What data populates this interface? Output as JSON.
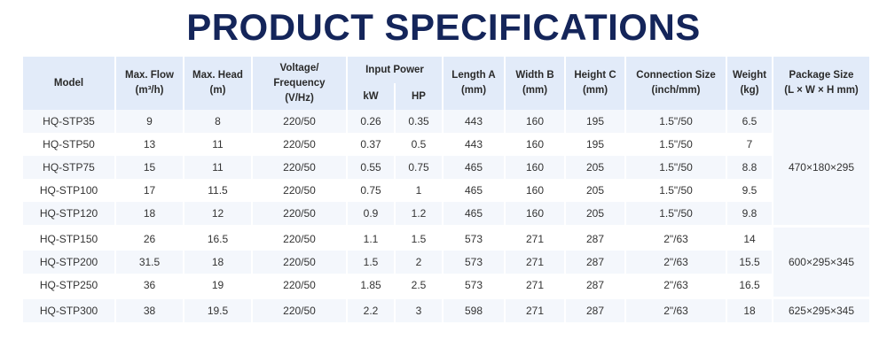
{
  "title": "PRODUCT SPECIFICATIONS",
  "headers": {
    "model": "Model",
    "max_flow": "Max. Flow",
    "max_flow_unit": "(m³/h)",
    "max_head": "Max. Head",
    "max_head_unit": "(m)",
    "voltage": "Voltage/",
    "voltage_2": "Frequency",
    "voltage_unit": "(V/Hz)",
    "input_power": "Input Power",
    "kw": "kW",
    "hp": "HP",
    "length": "Length A",
    "length_unit": "(mm)",
    "width": "Width B",
    "width_unit": "(mm)",
    "height": "Height C",
    "height_unit": "(mm)",
    "connection": "Connection Size",
    "connection_unit": "(inch/mm)",
    "weight": "Weight",
    "weight_unit": "(kg)",
    "package": "Package Size",
    "package_unit": "(L × W × H mm)"
  },
  "rows": [
    {
      "model": "HQ-STP35",
      "flow": "9",
      "head": "8",
      "voltage": "220/50",
      "kw": "0.26",
      "hp": "0.35",
      "length": "443",
      "width": "160",
      "height": "195",
      "connection": "1.5\"/50",
      "weight": "6.5"
    },
    {
      "model": "HQ-STP50",
      "flow": "13",
      "head": "11",
      "voltage": "220/50",
      "kw": "0.37",
      "hp": "0.5",
      "length": "443",
      "width": "160",
      "height": "195",
      "connection": "1.5\"/50",
      "weight": "7"
    },
    {
      "model": "HQ-STP75",
      "flow": "15",
      "head": "11",
      "voltage": "220/50",
      "kw": "0.55",
      "hp": "0.75",
      "length": "465",
      "width": "160",
      "height": "205",
      "connection": "1.5\"/50",
      "weight": "8.8"
    },
    {
      "model": "HQ-STP100",
      "flow": "17",
      "head": "11.5",
      "voltage": "220/50",
      "kw": "0.75",
      "hp": "1",
      "length": "465",
      "width": "160",
      "height": "205",
      "connection": "1.5\"/50",
      "weight": "9.5"
    },
    {
      "model": "HQ-STP120",
      "flow": "18",
      "head": "12",
      "voltage": "220/50",
      "kw": "0.9",
      "hp": "1.2",
      "length": "465",
      "width": "160",
      "height": "205",
      "connection": "1.5\"/50",
      "weight": "9.8"
    },
    {
      "model": "HQ-STP150",
      "flow": "26",
      "head": "16.5",
      "voltage": "220/50",
      "kw": "1.1",
      "hp": "1.5",
      "length": "573",
      "width": "271",
      "height": "287",
      "connection": "2\"/63",
      "weight": "14"
    },
    {
      "model": "HQ-STP200",
      "flow": "31.5",
      "head": "18",
      "voltage": "220/50",
      "kw": "1.5",
      "hp": "2",
      "length": "573",
      "width": "271",
      "height": "287",
      "connection": "2\"/63",
      "weight": "15.5"
    },
    {
      "model": "HQ-STP250",
      "flow": "36",
      "head": "19",
      "voltage": "220/50",
      "kw": "1.85",
      "hp": "2.5",
      "length": "573",
      "width": "271",
      "height": "287",
      "connection": "2\"/63",
      "weight": "16.5"
    },
    {
      "model": "HQ-STP300",
      "flow": "38",
      "head": "19.5",
      "voltage": "220/50",
      "kw": "2.2",
      "hp": "3",
      "length": "598",
      "width": "271",
      "height": "287",
      "connection": "2\"/63",
      "weight": "18"
    }
  ],
  "packages": [
    "470×180×295",
    "600×295×345",
    "625×295×345"
  ]
}
